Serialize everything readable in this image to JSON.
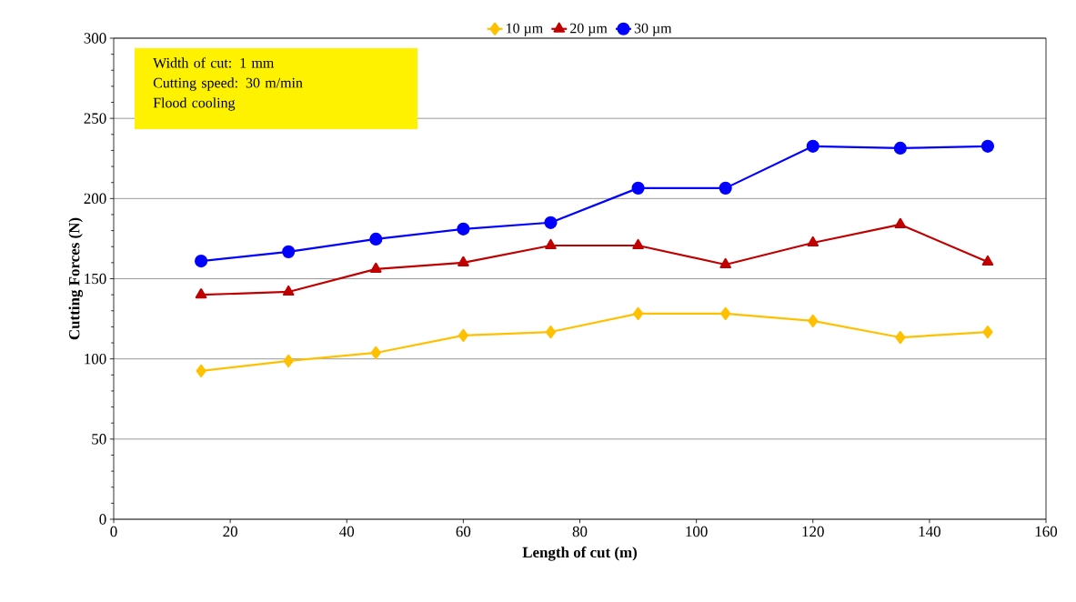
{
  "chart_data": {
    "type": "line",
    "xlabel": "Length of cut (m)",
    "ylabel": "Cutting Forces (N)",
    "x": [
      15,
      30,
      45,
      60,
      75,
      90,
      105,
      120,
      135,
      150
    ],
    "series": [
      {
        "name": "10 µm",
        "color": "#ffc000",
        "marker": "diamond",
        "values": [
          92.5,
          98.7,
          103.8,
          114.6,
          116.8,
          128.2,
          128.2,
          123.7,
          113.4,
          116.8
        ]
      },
      {
        "name": "20 µm",
        "color": "#c00000",
        "marker": "triangle",
        "values": [
          140,
          141.8,
          156,
          160,
          170.7,
          170.7,
          158.8,
          172.4,
          183.8,
          160.5
        ]
      },
      {
        "name": "30 µm",
        "color": "#0000ff",
        "marker": "circle",
        "values": [
          161,
          166.8,
          174.7,
          181,
          185,
          206.5,
          206.5,
          232.6,
          231.4,
          232.6
        ]
      }
    ],
    "xlim": [
      0,
      160
    ],
    "xticks": [
      0,
      20,
      40,
      60,
      80,
      100,
      120,
      140,
      160
    ],
    "ylim": [
      0,
      300
    ],
    "yticks": [
      0,
      50,
      100,
      150,
      200,
      250,
      300
    ],
    "grid": "y",
    "legend": "top",
    "line_style": "solid",
    "annotations": [
      "Width of cut: 1 mm",
      "Cutting speed: 30 m/min",
      "Flood cooling"
    ]
  }
}
